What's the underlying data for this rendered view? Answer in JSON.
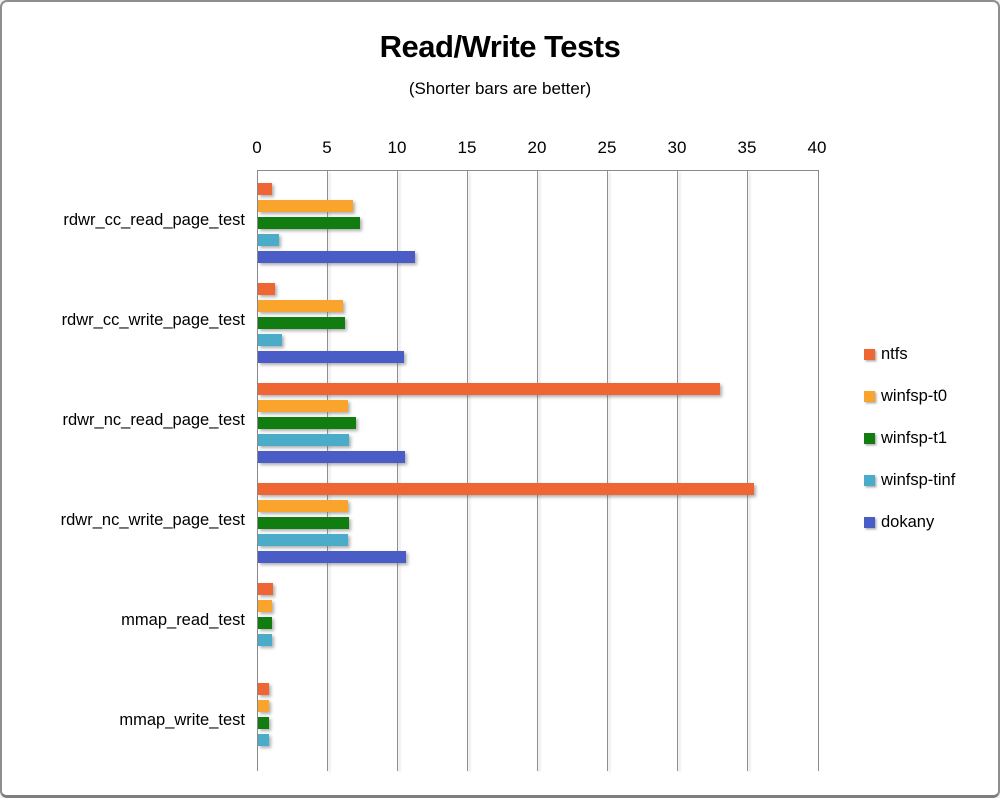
{
  "title": "Read/Write Tests",
  "subtitle": "(Shorter bars are better)",
  "chart_data": {
    "type": "bar",
    "orientation": "horizontal",
    "title": "Read/Write Tests",
    "subtitle": "(Shorter bars are better)",
    "categories": [
      "rdwr_cc_read_page_test",
      "rdwr_cc_write_page_test",
      "rdwr_nc_read_page_test",
      "rdwr_nc_write_page_test",
      "mmap_read_test",
      "mmap_write_test"
    ],
    "series": [
      {
        "name": "ntfs",
        "color": "#ED6633",
        "values": [
          1.0,
          1.2,
          33.0,
          35.4,
          1.1,
          0.8
        ]
      },
      {
        "name": "winfsp-t0",
        "color": "#F9A42C",
        "values": [
          6.8,
          6.1,
          6.4,
          6.4,
          1.0,
          0.8
        ]
      },
      {
        "name": "winfsp-t1",
        "color": "#117D11",
        "values": [
          7.3,
          6.2,
          7.0,
          6.5,
          1.0,
          0.8
        ]
      },
      {
        "name": "winfsp-tinf",
        "color": "#4BACC9",
        "values": [
          1.5,
          1.7,
          6.5,
          6.4,
          1.0,
          0.8
        ]
      },
      {
        "name": "dokany",
        "color": "#4A5DC7",
        "values": [
          11.2,
          10.4,
          10.5,
          10.6,
          0,
          0
        ]
      }
    ],
    "xlim": [
      0,
      40
    ],
    "xticks": [
      0,
      5,
      10,
      15,
      20,
      25,
      30,
      35,
      40
    ],
    "grid": true,
    "legend_position": "right",
    "axis_position": "top"
  }
}
